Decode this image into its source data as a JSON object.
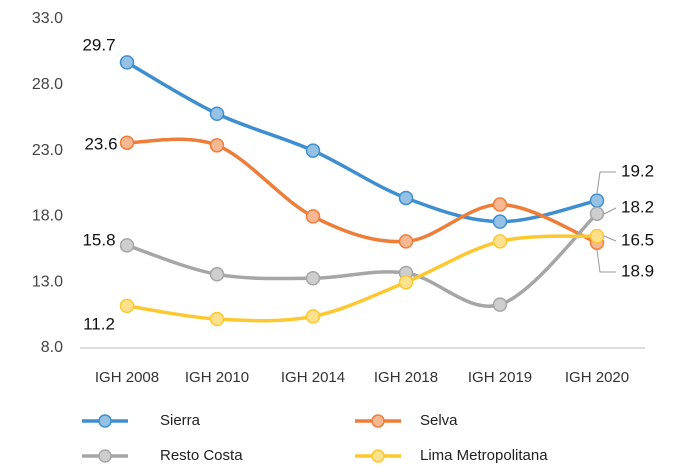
{
  "chart_data": {
    "type": "line",
    "categories": [
      "IGH 2008",
      "IGH 2010",
      "IGH 2014",
      "IGH 2018",
      "IGH 2019",
      "IGH 2020"
    ],
    "series": [
      {
        "name": "Sierra",
        "color": "#3f8fd0",
        "values": [
          29.7,
          25.8,
          23.0,
          19.4,
          17.6,
          19.2
        ]
      },
      {
        "name": "Selva",
        "color": "#ef7d3a",
        "values": [
          23.6,
          23.4,
          18.0,
          16.1,
          18.9,
          16.0
        ]
      },
      {
        "name": "Resto Costa",
        "color": "#a6a6a6",
        "values": [
          15.8,
          13.6,
          13.3,
          13.7,
          11.3,
          18.2
        ]
      },
      {
        "name": "Lima Metropolitana",
        "color": "#fdc82f",
        "values": [
          11.2,
          10.2,
          10.4,
          13.0,
          16.1,
          16.5
        ]
      }
    ],
    "annotations": [
      "29.7",
      "23.6",
      "15.8",
      "11.2",
      "19.2",
      "18.2",
      "16.5",
      "18.9"
    ],
    "ylim": [
      8,
      33
    ],
    "yticks": [
      {
        "value": 8,
        "label": "8.0"
      },
      {
        "value": 13,
        "label": "13.0"
      },
      {
        "value": 18,
        "label": "18.0"
      },
      {
        "value": 23,
        "label": "23.0"
      },
      {
        "value": 28,
        "label": "28.0"
      },
      {
        "value": 33,
        "label": "33.0"
      }
    ],
    "legend": "bottom"
  }
}
